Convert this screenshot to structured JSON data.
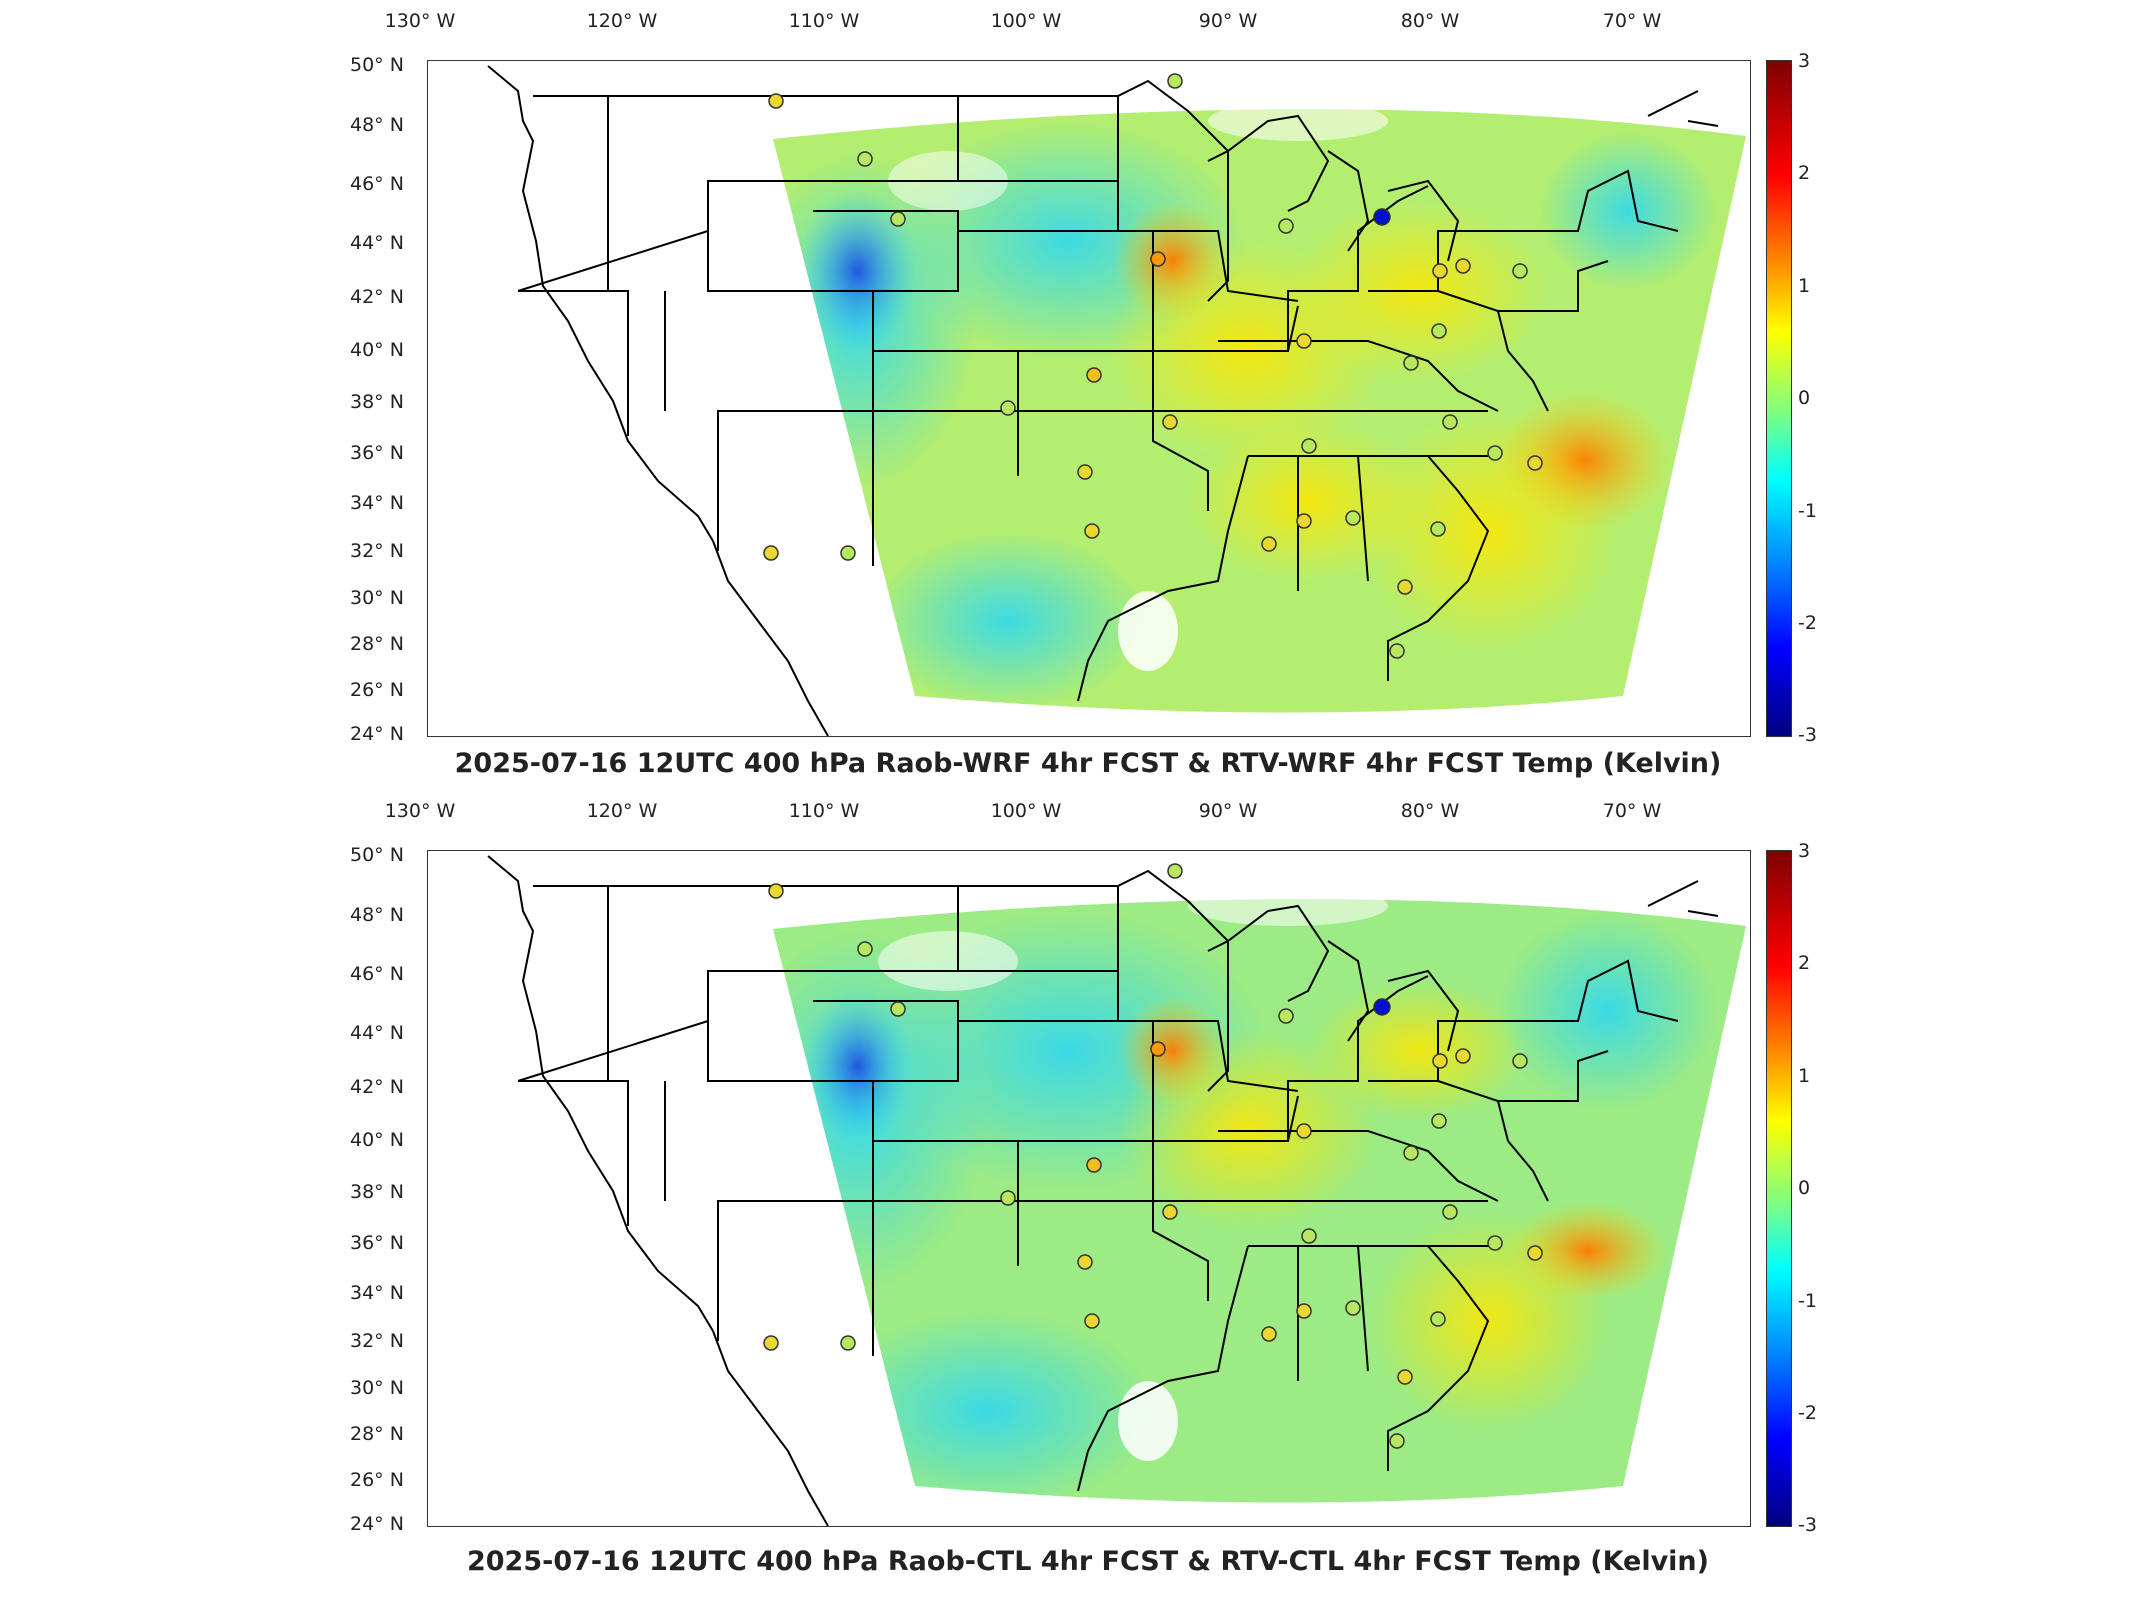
{
  "colors": {
    "field_base": "#b8f06a",
    "state_lines": "#000000",
    "station_positive": "#e0f020",
    "station_negative": "#0000cc",
    "colorbar_max": "#800000",
    "colorbar_min": "#000080"
  },
  "axes": {
    "lon_labels": [
      "130° W",
      "120° W",
      "110° W",
      "100° W",
      "90° W",
      "80° W",
      "70° W"
    ],
    "lat_labels": [
      "50° N",
      "48° N",
      "46° N",
      "44° N",
      "42° N",
      "40° N",
      "38° N",
      "36° N",
      "34° N",
      "32° N",
      "30° N",
      "28° N",
      "26° N",
      "24° N"
    ]
  },
  "colorbar": {
    "ticks": [
      "3",
      "2",
      "1",
      "0",
      "-1",
      "-2",
      "-3"
    ],
    "range": [
      -3,
      3
    ]
  },
  "panels": [
    {
      "id": "top",
      "title": "2025-07-16 12UTC 400 hPa Raob-WRF 4hr FCST & RTV-WRF 4hr FCST Temp (Kelvin)"
    },
    {
      "id": "bottom",
      "title": "2025-07-16 12UTC 400 hPa Raob-CTL 4hr FCST & RTV-CTL 4hr FCST Temp (Kelvin)"
    }
  ],
  "stations_note": ""
}
